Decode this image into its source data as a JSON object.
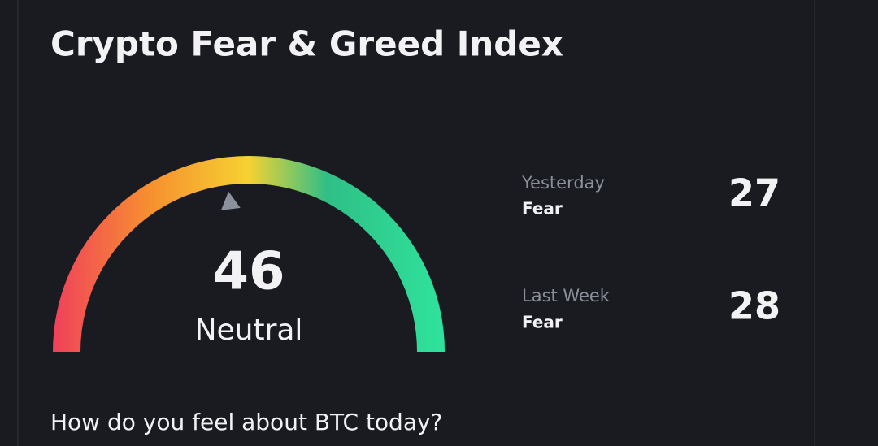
{
  "header": {
    "title": "Crypto Fear & Greed Index"
  },
  "gauge": {
    "value": 46,
    "label": "Neutral",
    "scale": [
      0,
      100
    ]
  },
  "history": [
    {
      "period": "Yesterday",
      "label": "Fear",
      "value": 27
    },
    {
      "period": "Last Week",
      "label": "Fear",
      "value": 28
    }
  ],
  "prompt": "How do you feel about BTC today?"
}
